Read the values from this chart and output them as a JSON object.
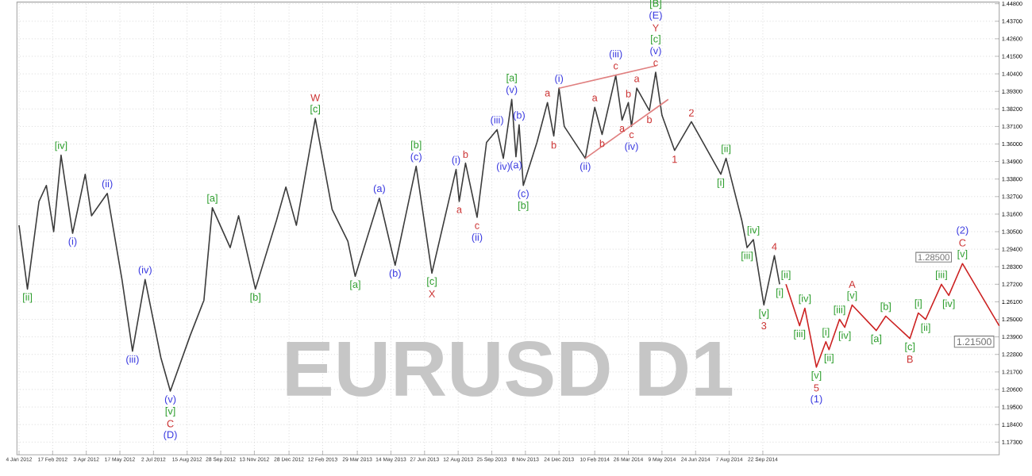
{
  "chart_data": {
    "type": "line",
    "xlim": [
      "2012-01-02",
      "2015-08-03"
    ],
    "ylim": [
      1.165,
      1.449
    ],
    "xticks": [
      {
        "value": "2012-01-04",
        "label": "4 Jan 2012"
      },
      {
        "value": "2012-02-17",
        "label": "17 Feb 2012"
      },
      {
        "value": "2012-04-03",
        "label": "3 Apr 2012"
      },
      {
        "value": "2012-05-17",
        "label": "17 May 2012"
      },
      {
        "value": "2012-07-02",
        "label": "2 Jul 2012"
      },
      {
        "value": "2012-08-15",
        "label": "15 Aug 2012"
      },
      {
        "value": "2012-09-28",
        "label": "28 Sep 2012"
      },
      {
        "value": "2012-11-13",
        "label": "13 Nov 2012"
      },
      {
        "value": "2012-12-28",
        "label": "28 Dec 2012"
      },
      {
        "value": "2013-02-12",
        "label": "12 Feb 2013"
      },
      {
        "value": "2013-03-29",
        "label": "29 Mar 2013"
      },
      {
        "value": "2013-05-14",
        "label": "14 May 2013"
      },
      {
        "value": "2013-06-27",
        "label": "27 Jun 2013"
      },
      {
        "value": "2013-08-12",
        "label": "12 Aug 2013"
      },
      {
        "value": "2013-09-25",
        "label": "25 Sep 2013"
      },
      {
        "value": "2013-11-08",
        "label": "8 Nov 2013"
      },
      {
        "value": "2013-12-24",
        "label": "24 Dec 2013"
      },
      {
        "value": "2014-02-10",
        "label": "10 Feb 2014"
      },
      {
        "value": "2014-03-26",
        "label": "26 Mar 2014"
      },
      {
        "value": "2014-05-09",
        "label": "9 May 2014"
      },
      {
        "value": "2014-06-24",
        "label": "24 Jun 2014"
      },
      {
        "value": "2014-08-07",
        "label": "7 Aug 2014"
      },
      {
        "value": "2014-09-22",
        "label": "22 Sep 2014"
      }
    ],
    "yticks": [
      {
        "value": 1.173,
        "label": "1.17300"
      },
      {
        "value": 1.184,
        "label": "1.18400"
      },
      {
        "value": 1.195,
        "label": "1.19500"
      },
      {
        "value": 1.206,
        "label": "1.20600"
      },
      {
        "value": 1.217,
        "label": "1.21700"
      },
      {
        "value": 1.228,
        "label": "1.22800"
      },
      {
        "value": 1.239,
        "label": "1.23900"
      },
      {
        "value": 1.25,
        "label": "1.25000"
      },
      {
        "value": 1.261,
        "label": "1.26100"
      },
      {
        "value": 1.272,
        "label": "1.27200"
      },
      {
        "value": 1.283,
        "label": "1.28300"
      },
      {
        "value": 1.294,
        "label": "1.29400"
      },
      {
        "value": 1.305,
        "label": "1.30500"
      },
      {
        "value": 1.316,
        "label": "1.31600"
      },
      {
        "value": 1.327,
        "label": "1.32700"
      },
      {
        "value": 1.338,
        "label": "1.33800"
      },
      {
        "value": 1.349,
        "label": "1.34900"
      },
      {
        "value": 1.36,
        "label": "1.36000"
      },
      {
        "value": 1.371,
        "label": "1.37100"
      },
      {
        "value": 1.382,
        "label": "1.38200"
      },
      {
        "value": 1.393,
        "label": "1.39300"
      },
      {
        "value": 1.404,
        "label": "1.40400"
      },
      {
        "value": 1.415,
        "label": "1.41500"
      },
      {
        "value": 1.426,
        "label": "1.42600"
      },
      {
        "value": 1.437,
        "label": "1.43700"
      },
      {
        "value": 1.448,
        "label": "1.44800"
      }
    ],
    "grid": true,
    "series": [
      {
        "color": "#3c3c3c",
        "x": [
          "2012-01-04",
          "2012-01-14",
          "2012-01-31",
          "2012-02-09",
          "2012-02-18",
          "2012-02-29",
          "2012-03-15",
          "2012-04-01",
          "2012-04-10",
          "2012-05-01",
          "2012-05-20",
          "2012-06-02",
          "2012-06-20",
          "2012-07-11",
          "2012-07-24",
          "2012-08-18",
          "2012-09-06",
          "2012-09-18",
          "2012-10-11",
          "2012-10-23",
          "2012-11-14",
          "2012-12-12",
          "2012-12-25",
          "2013-01-08",
          "2013-02-01",
          "2013-02-23",
          "2013-03-17",
          "2013-03-27",
          "2013-04-27",
          "2013-05-18",
          "2013-06-15",
          "2013-07-06",
          "2013-08-08",
          "2013-08-13",
          "2013-08-21",
          "2013-09-05",
          "2013-09-18",
          "2013-10-02",
          "2013-10-10",
          "2013-10-22",
          "2013-10-28",
          "2013-10-31",
          "2013-11-06",
          "2013-11-23",
          "2013-12-07",
          "2013-12-17",
          "2013-12-24",
          "2013-12-31",
          "2014-01-28",
          "2014-02-09",
          "2014-02-19",
          "2014-03-08",
          "2014-03-18",
          "2014-03-26",
          "2014-03-30",
          "2014-04-05",
          "2014-04-23",
          "2014-05-01",
          "2014-05-09",
          "2014-05-27",
          "2014-06-18",
          "2014-07-27",
          "2014-08-03",
          "2014-08-23",
          "2014-08-30",
          "2014-09-09",
          "2014-09-23",
          "2014-10-07",
          "2014-10-14"
        ],
        "values": [
          1.309,
          1.269,
          1.324,
          1.334,
          1.305,
          1.353,
          1.304,
          1.341,
          1.315,
          1.329,
          1.275,
          1.23,
          1.275,
          1.226,
          1.205,
          1.24,
          1.262,
          1.32,
          1.295,
          1.315,
          1.269,
          1.312,
          1.333,
          1.309,
          1.376,
          1.319,
          1.299,
          1.277,
          1.326,
          1.284,
          1.346,
          1.279,
          1.344,
          1.324,
          1.348,
          1.314,
          1.361,
          1.369,
          1.351,
          1.388,
          1.352,
          1.372,
          1.334,
          1.361,
          1.386,
          1.365,
          1.395,
          1.371,
          1.351,
          1.383,
          1.366,
          1.403,
          1.375,
          1.386,
          1.371,
          1.395,
          1.381,
          1.405,
          1.378,
          1.356,
          1.374,
          1.341,
          1.351,
          1.312,
          1.295,
          1.3,
          1.259,
          1.29,
          1.272
        ]
      },
      {
        "color": "#cc2222",
        "x": [
          "2014-10-22",
          "2014-11-08",
          "2014-11-15",
          "2014-12-02",
          "2014-12-13",
          "2014-12-18",
          "2015-01-01",
          "2015-01-08",
          "2015-01-18",
          "2015-02-19",
          "2015-03-04",
          "2015-04-04",
          "2015-04-16",
          "2015-04-25",
          "2015-05-17",
          "2015-05-27",
          "2015-06-13",
          "2015-08-03"
        ],
        "values": [
          1.272,
          1.246,
          1.257,
          1.22,
          1.236,
          1.231,
          1.25,
          1.245,
          1.259,
          1.243,
          1.252,
          1.238,
          1.254,
          1.25,
          1.272,
          1.265,
          1.285,
          1.246
        ]
      },
      {
        "color": "#e08080",
        "x": [
          "2013-12-24",
          "2014-05-01"
        ],
        "values": [
          1.395,
          1.409
        ]
      },
      {
        "color": "#e08080",
        "x": [
          "2014-01-28",
          "2014-05-17"
        ],
        "values": [
          1.351,
          1.388
        ]
      }
    ],
    "annotations": [
      "EURUSD D1",
      {
        "text": "[ii]",
        "x": "2012-01-14",
        "y": 1.269
      },
      {
        "text": "[iv]",
        "x": "2012-02-29",
        "y": 1.353
      },
      {
        "text": "(i)",
        "x": "2012-03-15",
        "y": 1.304
      },
      {
        "text": "(ii)",
        "x": "2012-05-01",
        "y": 1.329
      },
      {
        "text": "(iii)",
        "x": "2012-06-02",
        "y": 1.23
      },
      {
        "text": "(iv)",
        "x": "2012-06-20",
        "y": 1.275
      },
      {
        "text": "(v)",
        "x": "2012-07-24",
        "y": 1.205
      },
      {
        "text": "[v]",
        "x": "2012-07-24",
        "y": 1.205
      },
      {
        "text": "C",
        "x": "2012-07-24",
        "y": 1.205
      },
      "(D)",
      {
        "text": "[a]",
        "x": "2012-09-18",
        "y": 1.32
      },
      {
        "text": "[b]",
        "x": "2012-11-14",
        "y": 1.269
      },
      {
        "text": "[c]",
        "x": "2013-02-01",
        "y": 1.376
      },
      {
        "text": "W",
        "x": "2013-02-01",
        "y": 1.376
      },
      {
        "text": "[a]",
        "x": "2013-03-27",
        "y": 1.277
      },
      {
        "text": "(a)",
        "x": "2013-04-27",
        "y": 1.326
      },
      {
        "text": "(b)",
        "x": "2013-05-18",
        "y": 1.284
      },
      {
        "text": "(c)",
        "x": "2013-06-15",
        "y": 1.346
      },
      {
        "text": "[b]",
        "x": "2013-06-15",
        "y": 1.346
      },
      {
        "text": "[c]",
        "x": "2013-07-06",
        "y": 1.279
      },
      {
        "text": "X",
        "x": "2013-07-06",
        "y": 1.279
      },
      {
        "text": "(i)",
        "x": "2013-08-08",
        "y": 1.344
      },
      {
        "text": "a",
        "x": "2013-08-13",
        "y": 1.324
      },
      {
        "text": "b",
        "x": "2013-08-21",
        "y": 1.348
      },
      {
        "text": "c",
        "x": "2013-09-05",
        "y": 1.314
      },
      {
        "text": "(ii)",
        "x": "2013-09-05",
        "y": 1.314
      },
      {
        "text": "(iii)",
        "x": "2013-10-02",
        "y": 1.369
      },
      {
        "text": "(iv)",
        "x": "2013-10-10",
        "y": 1.351
      },
      {
        "text": "(v)",
        "x": "2013-10-22",
        "y": 1.388
      },
      {
        "text": "[a]",
        "x": "2013-10-22",
        "y": 1.388
      },
      {
        "text": "(a)",
        "x": "2013-10-28",
        "y": 1.352
      },
      {
        "text": "(b)",
        "x": "2013-10-31",
        "y": 1.372
      },
      {
        "text": "(c)",
        "x": "2013-11-06",
        "y": 1.334
      },
      {
        "text": "[b]",
        "x": "2013-11-06",
        "y": 1.334
      },
      {
        "text": "a",
        "x": "2013-12-07",
        "y": 1.386
      },
      {
        "text": "b",
        "x": "2013-12-17",
        "y": 1.365
      },
      {
        "text": "(i)",
        "x": "2013-12-24",
        "y": 1.395
      },
      {
        "text": "(ii)",
        "x": "2014-01-28",
        "y": 1.351
      },
      {
        "text": "a",
        "x": "2014-02-09",
        "y": 1.383
      },
      {
        "text": "b",
        "x": "2014-02-19",
        "y": 1.366
      },
      {
        "text": "c",
        "x": "2014-03-08",
        "y": 1.403
      },
      {
        "text": "(iii)",
        "x": "2014-03-08",
        "y": 1.403
      },
      {
        "text": "a",
        "x": "2014-03-18",
        "y": 1.375
      },
      {
        "text": "b",
        "x": "2014-03-26",
        "y": 1.386
      },
      {
        "text": "c",
        "x": "2014-03-30",
        "y": 1.371
      },
      {
        "text": "(iv)",
        "x": "2014-03-30",
        "y": 1.371
      },
      {
        "text": "a",
        "x": "2014-04-05",
        "y": 1.395
      },
      {
        "text": "b",
        "x": "2014-04-23",
        "y": 1.381
      },
      {
        "text": "c",
        "x": "2014-05-01",
        "y": 1.405
      },
      {
        "text": "(v)",
        "x": "2014-05-01",
        "y": 1.405
      },
      {
        "text": "[c]",
        "x": "2014-05-01",
        "y": 1.405
      },
      "Y",
      "(E)",
      "[B]",
      {
        "text": "1",
        "x": "2014-05-27",
        "y": 1.356
      },
      {
        "text": "2",
        "x": "2014-06-18",
        "y": 1.374
      },
      {
        "text": "[i]",
        "x": "2014-07-27",
        "y": 1.341
      },
      {
        "text": "[ii]",
        "x": "2014-08-03",
        "y": 1.351
      },
      {
        "text": "[iii]",
        "x": "2014-08-30",
        "y": 1.295
      },
      {
        "text": "[iv]",
        "x": "2014-09-09",
        "y": 1.3
      },
      {
        "text": "[v]",
        "x": "2014-09-23",
        "y": 1.259
      },
      {
        "text": "3",
        "x": "2014-09-23",
        "y": 1.259
      },
      {
        "text": "4",
        "x": "2014-10-07",
        "y": 1.29
      },
      {
        "text": "[i]",
        "x": "2014-10-14",
        "y": 1.272
      },
      {
        "text": "[ii]",
        "x": "2014-10-22",
        "y": 1.272
      },
      {
        "text": "[iii]",
        "x": "2014-11-08",
        "y": 1.246
      },
      {
        "text": "[iv]",
        "x": "2014-11-15",
        "y": 1.257
      },
      {
        "text": "[v]",
        "x": "2014-12-02",
        "y": 1.22
      },
      {
        "text": "5",
        "x": "2014-12-02",
        "y": 1.22
      },
      {
        "text": "(1)",
        "x": "2014-12-02",
        "y": 1.22
      },
      {
        "text": "[i]",
        "x": "2014-12-13",
        "y": 1.236
      },
      {
        "text": "[ii]",
        "x": "2014-12-18",
        "y": 1.231
      },
      {
        "text": "[iii]",
        "x": "2015-01-01",
        "y": 1.25
      },
      {
        "text": "[iv]",
        "x": "2015-01-08",
        "y": 1.245
      },
      {
        "text": "[v]",
        "x": "2015-01-18",
        "y": 1.259
      },
      {
        "text": "A",
        "x": "2015-01-18",
        "y": 1.259
      },
      {
        "text": "[a]",
        "x": "2015-02-19",
        "y": 1.243
      },
      {
        "text": "[b]",
        "x": "2015-03-04",
        "y": 1.252
      },
      {
        "text": "[c]",
        "x": "2015-04-04",
        "y": 1.238
      },
      {
        "text": "B",
        "x": "2015-04-04",
        "y": 1.238
      },
      {
        "text": "[i]",
        "x": "2015-04-16",
        "y": 1.254
      },
      {
        "text": "[ii]",
        "x": "2015-04-25",
        "y": 1.25
      },
      {
        "text": "[iii]",
        "x": "2015-05-17",
        "y": 1.272
      },
      {
        "text": "[iv]",
        "x": "2015-05-27",
        "y": 1.265
      },
      {
        "text": "[v]",
        "x": "2015-06-13",
        "y": 1.285
      },
      {
        "text": "C",
        "x": "2015-06-13",
        "y": 1.285
      },
      {
        "text": "(2)",
        "x": "2015-06-13",
        "y": 1.285
      },
      {
        "text": "1.28500",
        "x": "2015-06-13",
        "y": 1.285
      },
      "1.21500"
    ]
  }
}
